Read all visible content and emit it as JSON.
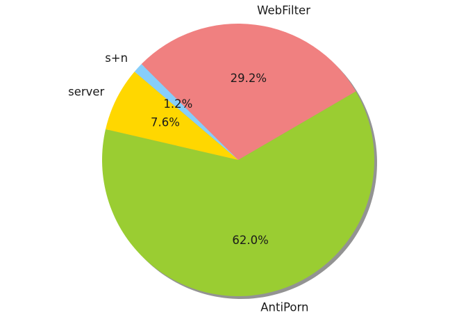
{
  "chart_data": {
    "type": "pie",
    "title": "",
    "slices": [
      {
        "label": "AntiPorn",
        "percent_text": "62.0%",
        "value": 62.0,
        "color": "#9ACD32"
      },
      {
        "label": "WebFilter",
        "percent_text": "29.2%",
        "value": 29.2,
        "color": "#F08080"
      },
      {
        "label": "s+n",
        "percent_text": "1.2%",
        "value": 1.2,
        "color": "#87CEFA"
      },
      {
        "label": "server",
        "percent_text": "7.6%",
        "value": 7.6,
        "color": "#FFD700"
      }
    ],
    "start_angle_deg": 167,
    "direction": "counterclockwise",
    "shadow": true,
    "legend": "none"
  }
}
